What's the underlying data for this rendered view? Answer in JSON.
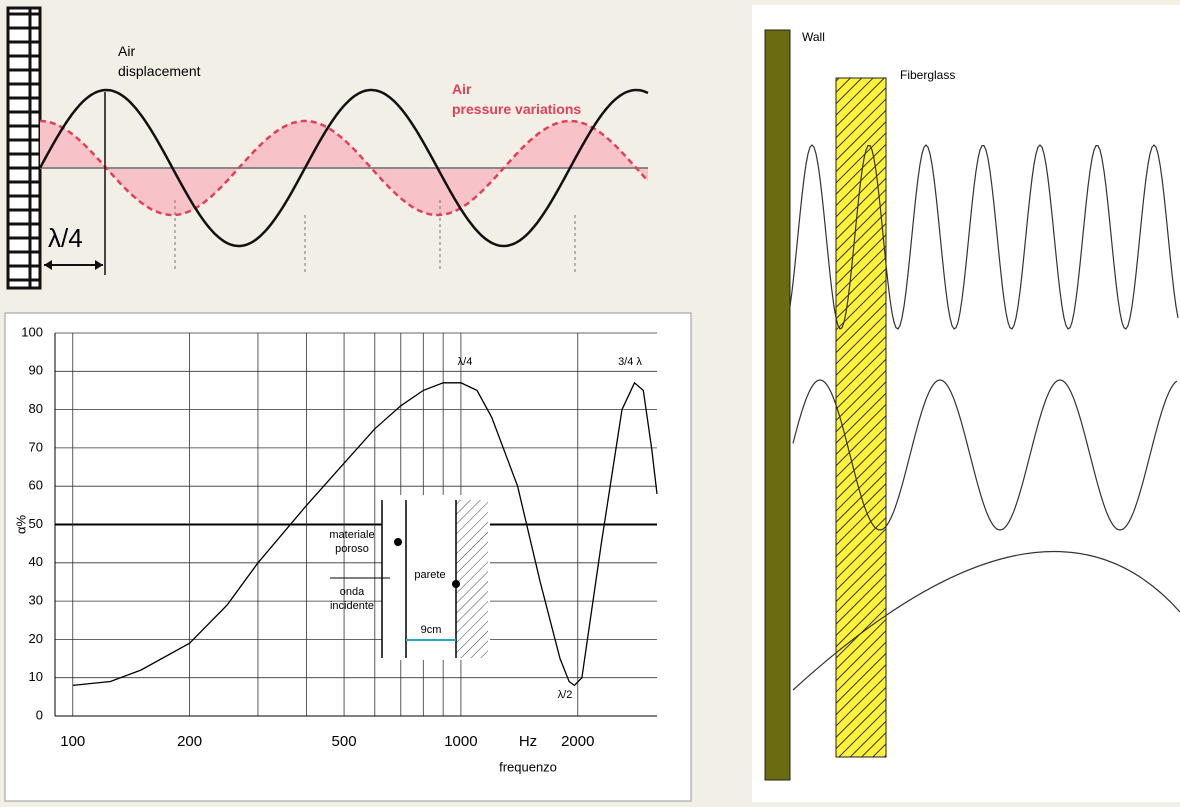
{
  "chart_data": {
    "type": "line",
    "x": [
      100,
      125,
      150,
      200,
      250,
      300,
      400,
      500,
      600,
      700,
      800,
      900,
      1000,
      1100,
      1200,
      1400,
      1600,
      1800,
      1900,
      1960,
      2050,
      2300,
      2600,
      2800,
      2950,
      3100,
      3200
    ],
    "values": [
      8,
      9,
      12,
      19,
      29,
      40,
      55,
      66,
      75,
      81,
      85,
      87,
      87,
      85,
      78,
      60,
      35,
      15,
      9,
      8,
      10,
      45,
      80,
      87,
      85,
      70,
      58
    ],
    "color": "#000000",
    "xscale": "log",
    "xlim": [
      90,
      3200
    ],
    "xticks": [
      100,
      200,
      500,
      1000,
      2000
    ],
    "xminor": [
      300,
      400,
      600,
      700,
      800,
      900
    ],
    "ylim": [
      0,
      100
    ],
    "yticks": [
      0,
      10,
      20,
      30,
      40,
      50,
      60,
      70,
      80,
      90,
      100
    ],
    "ref_line": 50,
    "grid": true,
    "ylabel": "α%",
    "xunit": "Hz",
    "xlabel": "frequenzo",
    "annotations": [
      "λ/4",
      "λ/2",
      "3/4 λ"
    ],
    "inset": {
      "material": "materiale poroso",
      "wave": "onda incidente",
      "wall": "parete",
      "gap": "9cm"
    }
  },
  "top_diagram": {
    "displacement": "Air displacement",
    "pressure": "Air pressure variations",
    "quarter": "λ/4"
  },
  "right_diagram": {
    "wall": "Wall",
    "fiberglass": "Fiberglass"
  }
}
